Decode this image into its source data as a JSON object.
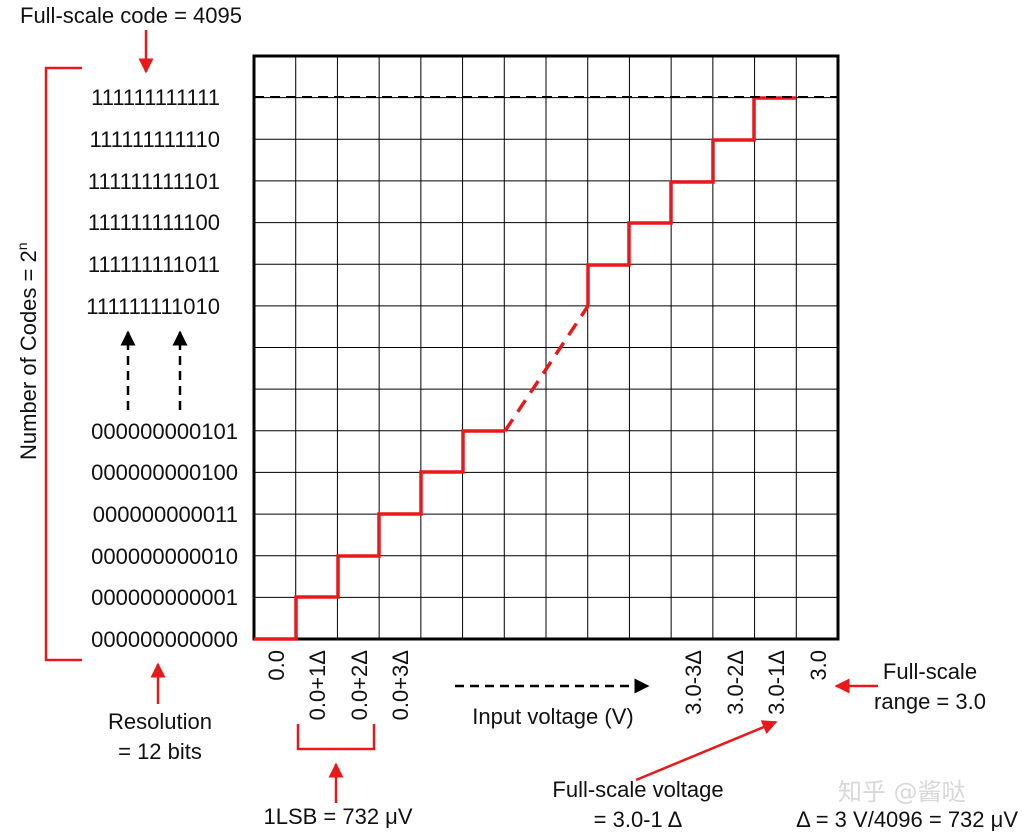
{
  "top_label": "Full-scale code = 4095",
  "y_axis_label": "Number of Codes = 2",
  "y_axis_label_sup": "n",
  "codes_top": [
    "111111111111",
    "111111111110",
    "111111111101",
    "111111111100",
    "111111111011",
    "111111111010"
  ],
  "codes_bottom": [
    "000000000101",
    "000000000100",
    "000000000011",
    "000000000010",
    "000000000001",
    "000000000000"
  ],
  "x_ticks_left": [
    "0.0",
    "0.0+1Δ",
    "0.0+2Δ",
    "0.0+3Δ"
  ],
  "x_ticks_right": [
    "3.0-3Δ",
    "3.0-2Δ",
    "3.0-1Δ",
    "3.0"
  ],
  "x_axis_label": "Input voltage (V)",
  "resolution": [
    "Resolution",
    "= 12 bits"
  ],
  "full_scale_range": [
    "Full-scale",
    "range = 3.0"
  ],
  "full_scale_voltage": [
    "Full-scale voltage",
    "= 3.0-1 Δ"
  ],
  "lsb": "1LSB = 732 μV",
  "delta": "Δ = 3 V/4096 = 732 μV",
  "watermark": "知乎 @酱哒",
  "colors": {
    "accent": "#e8191b",
    "grid": "#000000"
  }
}
